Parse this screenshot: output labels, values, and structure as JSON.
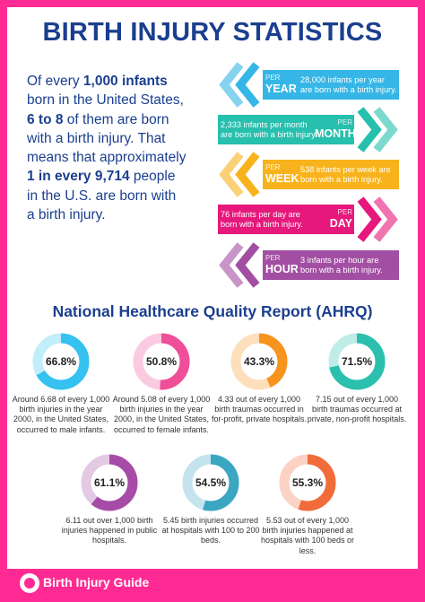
{
  "header": {
    "title": "BIRTH INJURY STATISTICS"
  },
  "intro": {
    "lines": [
      [
        {
          "text": "Of every ",
          "bold": false
        },
        {
          "text": "1,000 infants",
          "bold": true
        }
      ],
      [
        {
          "text": "born in the United States,",
          "bold": false
        }
      ],
      [
        {
          "text": "6 to 8",
          "bold": true
        },
        {
          "text": " of them are born",
          "bold": false
        }
      ],
      [
        {
          "text": "with a birth injury. That",
          "bold": false
        }
      ],
      [
        {
          "text": "means that approximately",
          "bold": false
        }
      ],
      [
        {
          "text": "1 in every 9,714",
          "bold": true
        },
        {
          "text": " people",
          "bold": false
        }
      ],
      [
        {
          "text": "in the U.S. are born with",
          "bold": false
        }
      ],
      [
        {
          "text": "a birth injury.",
          "bold": false
        }
      ]
    ]
  },
  "rates": [
    {
      "per": "PER",
      "unit": "YEAR",
      "text": "28,000 infants per year are born with a birth injury.",
      "color": "#35b6e6",
      "side": "left"
    },
    {
      "per": "PER",
      "unit": "MONTH",
      "text": "2,333 infants per month are born with a birth injury.",
      "color": "#27bfae",
      "side": "right"
    },
    {
      "per": "PER",
      "unit": "WEEK",
      "text": "538 infants per week are born with a birth injury.",
      "color": "#f8b31c",
      "side": "left"
    },
    {
      "per": "PER",
      "unit": "DAY",
      "text": "76 infants per day are born with a birth injury.",
      "color": "#e6187c",
      "side": "right"
    },
    {
      "per": "PER",
      "unit": "HOUR",
      "text": "3 infants per hour are born with a birth injury.",
      "color": "#a24fa3",
      "side": "left"
    }
  ],
  "report": {
    "title": "National Healthcare Quality Report (AHRQ)",
    "donuts": [
      {
        "value": 66.8,
        "label": "66.8%",
        "color": "#35c2f0",
        "caption": "Around 6.68 of every 1,000 birth injuries in the year 2000, in the United States, occurred to male infants."
      },
      {
        "value": 50.8,
        "label": "50.8%",
        "color": "#ef4f98",
        "caption": "Around 5.08 of every 1,000 birth injuries in the year 2000, in the United States, occurred to female infants."
      },
      {
        "value": 43.3,
        "label": "43.3%",
        "color": "#f7941d",
        "caption": "4.33 out of every 1,000 birth traumas occurred in for-profit, private hospitals."
      },
      {
        "value": 71.5,
        "label": "71.5%",
        "color": "#2bbfae",
        "caption": "7.15 out of every 1,000 birth traumas occurred at private, non-profit hospitals."
      },
      {
        "value": 61.1,
        "label": "61.1%",
        "color": "#a64ca6",
        "caption": "6.11 out over 1,000 birth injuries happened in public hospitals."
      },
      {
        "value": 54.5,
        "label": "54.5%",
        "color": "#3aa6c2",
        "caption": "5.45 birth injuries occurred at hospitals with 100 to 200 beds."
      },
      {
        "value": 55.3,
        "label": "55.3%",
        "color": "#f26b3a",
        "caption": "5.53 out of every 1,000 birth injuries happened at hospitals with 100 beds or less."
      }
    ]
  },
  "footer": {
    "brand": "Birth Injury Guide"
  }
}
